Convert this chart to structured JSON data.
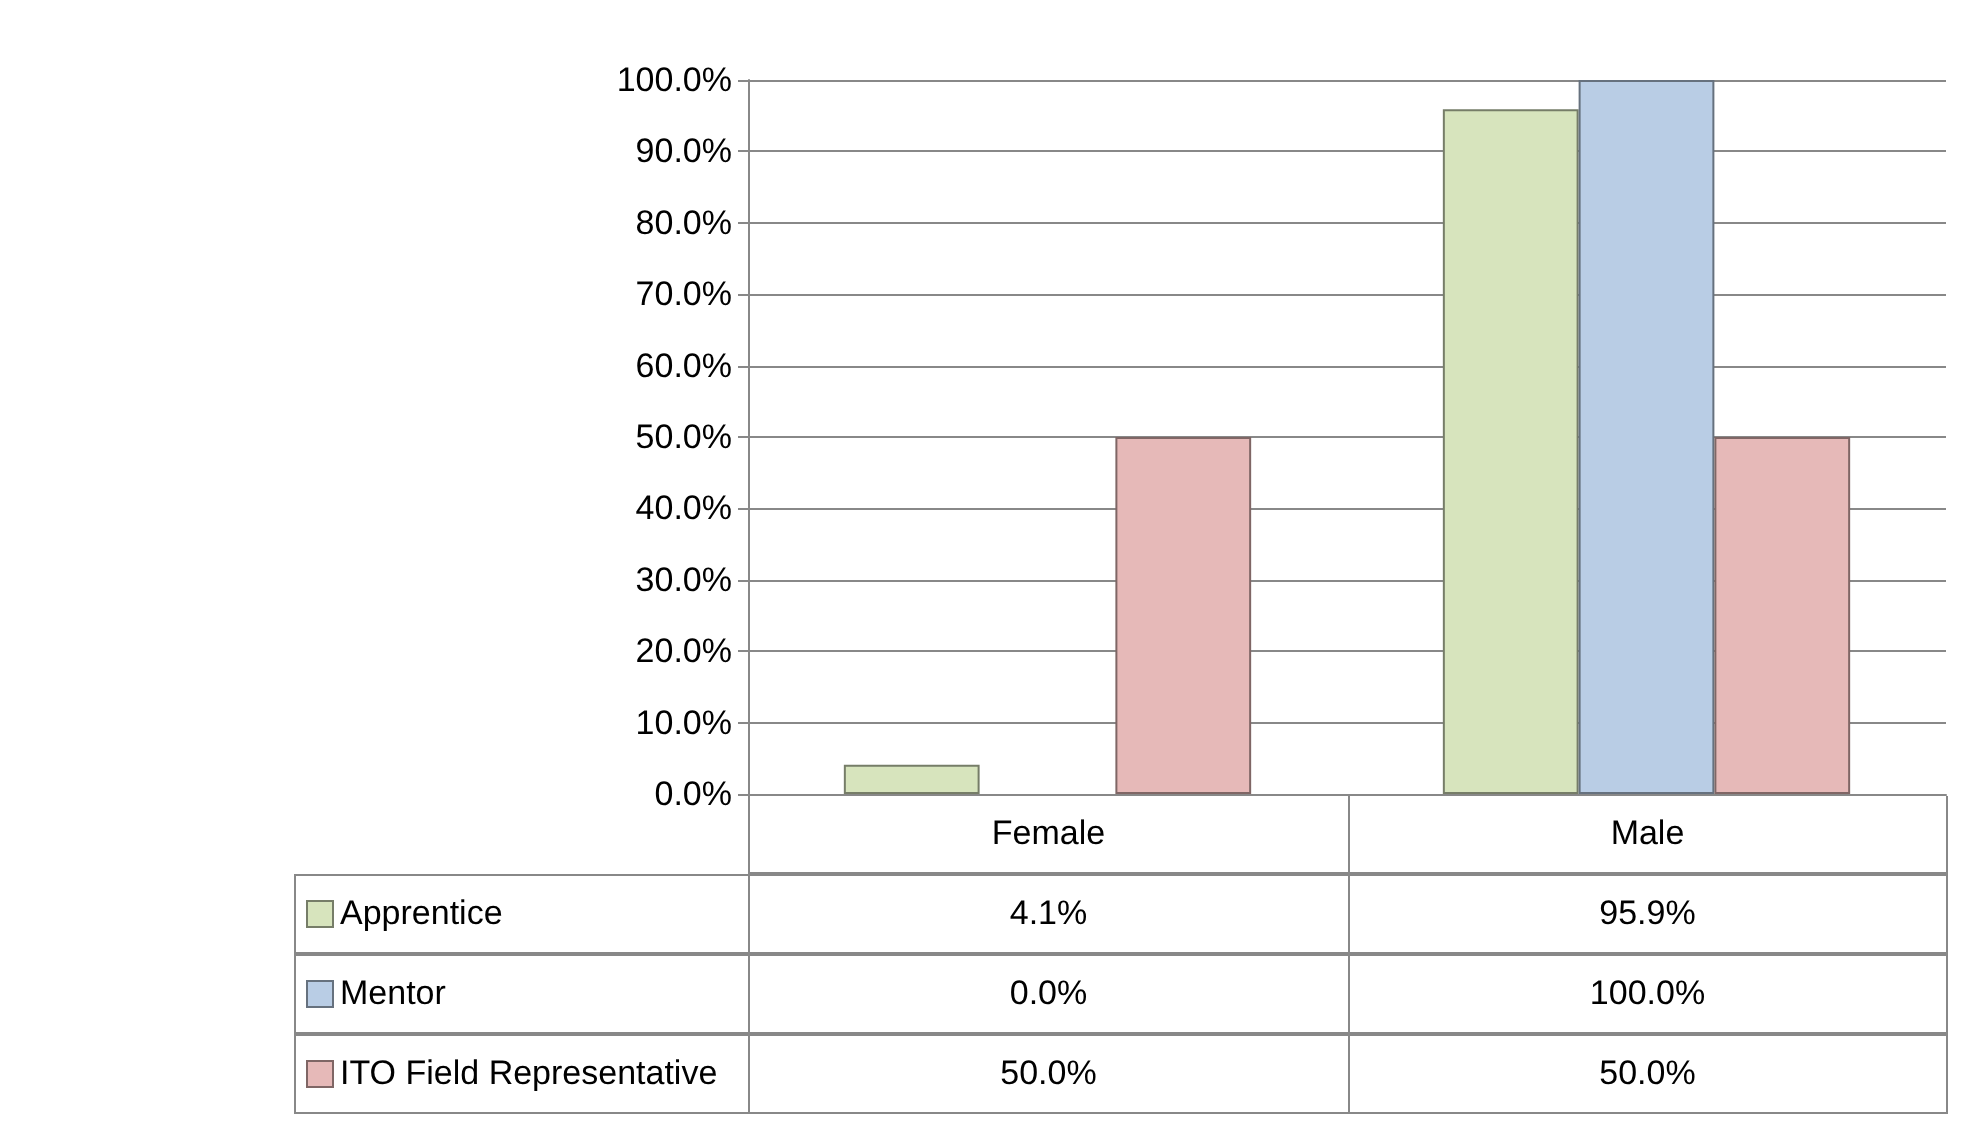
{
  "chart_data": {
    "type": "bar",
    "categories": [
      "Female",
      "Male"
    ],
    "series": [
      {
        "name": "Apprentice",
        "color": "#d7e4bd",
        "values": [
          4.1,
          95.9
        ],
        "value_labels": [
          "4.1%",
          "95.9%"
        ]
      },
      {
        "name": "Mentor",
        "color": "#b9cde5",
        "values": [
          0.0,
          100.0
        ],
        "value_labels": [
          "0.0%",
          "100.0%"
        ]
      },
      {
        "name": "ITO Field Representative",
        "color": "#e6b9b8",
        "values": [
          50.0,
          50.0
        ],
        "value_labels": [
          "50.0%",
          "50.0%"
        ]
      }
    ],
    "ylim": [
      0,
      100
    ],
    "yticks": [
      {
        "value": 0,
        "label": "0.0%"
      },
      {
        "value": 10,
        "label": "10.0%"
      },
      {
        "value": 20,
        "label": "20.0%"
      },
      {
        "value": 30,
        "label": "30.0%"
      },
      {
        "value": 40,
        "label": "40.0%"
      },
      {
        "value": 50,
        "label": "50.0%"
      },
      {
        "value": 60,
        "label": "60.0%"
      },
      {
        "value": 70,
        "label": "70.0%"
      },
      {
        "value": 80,
        "label": "80.0%"
      },
      {
        "value": 90,
        "label": "90.0%"
      },
      {
        "value": 100,
        "label": "100.0%"
      }
    ],
    "grid": "y",
    "legend": "bottom left"
  }
}
